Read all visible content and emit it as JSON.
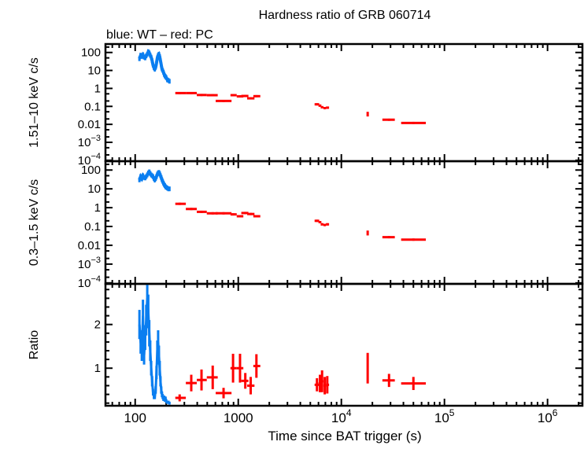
{
  "chart_data": {
    "type": "scatter",
    "title": "Hardness ratio of GRB 060714",
    "subtitle": "blue: WT – red: PC",
    "xlabel": "Time since BAT trigger (s)",
    "xscale": "log",
    "xlim": [
      51.5,
      2180000
    ],
    "x_ticks": [
      {
        "value": 100,
        "base": "100",
        "exp": ""
      },
      {
        "value": 1000,
        "base": "1000",
        "exp": ""
      },
      {
        "value": 10000,
        "base": "10",
        "exp": "4"
      },
      {
        "value": 100000,
        "base": "10",
        "exp": "5"
      },
      {
        "value": 1000000,
        "base": "10",
        "exp": "6"
      }
    ],
    "colors": {
      "WT": "#0a7ef0",
      "PC": "#ff0000"
    },
    "panels": [
      {
        "key": "hard",
        "ylabel": "1.51–10 keV c/s",
        "yscale": "log",
        "ylim": [
          8.9e-05,
          295
        ],
        "y_ticks": [
          {
            "value": 100,
            "base": "100",
            "exp": ""
          },
          {
            "value": 10,
            "base": "10",
            "exp": ""
          },
          {
            "value": 1,
            "base": "1",
            "exp": ""
          },
          {
            "value": 0.1,
            "base": "0.1",
            "exp": ""
          },
          {
            "value": 0.01,
            "base": "0.01",
            "exp": ""
          },
          {
            "value": 0.001,
            "base": "10",
            "exp": "−3"
          },
          {
            "value": 0.0001,
            "base": "10",
            "exp": "−4"
          }
        ]
      },
      {
        "key": "soft",
        "ylabel": "0.3–1.5 keV c/s",
        "yscale": "log",
        "ylim": [
          8.9e-05,
          295
        ],
        "y_ticks": [
          {
            "value": 100,
            "base": "100",
            "exp": ""
          },
          {
            "value": 10,
            "base": "10",
            "exp": ""
          },
          {
            "value": 1,
            "base": "1",
            "exp": ""
          },
          {
            "value": 0.1,
            "base": "0.1",
            "exp": ""
          },
          {
            "value": 0.01,
            "base": "0.01",
            "exp": ""
          },
          {
            "value": 0.001,
            "base": "10",
            "exp": "−3"
          },
          {
            "value": 0.0001,
            "base": "10",
            "exp": "−4"
          }
        ]
      },
      {
        "key": "ratio",
        "ylabel": "Ratio",
        "yscale": "linear",
        "ylim": [
          0.14,
          2.93
        ],
        "y_ticks": [
          {
            "value": 2,
            "base": "2",
            "exp": ""
          },
          {
            "value": 1,
            "base": "1",
            "exp": ""
          }
        ]
      }
    ],
    "series": [
      {
        "name": "WT",
        "t": [
          110,
          113,
          116,
          119,
          122,
          125,
          128,
          131,
          134,
          137,
          140,
          143,
          146,
          149,
          152,
          155,
          158,
          161,
          164,
          167,
          170,
          173,
          176,
          179,
          182,
          185,
          188,
          191,
          194,
          197,
          200,
          205,
          210,
          215
        ],
        "hard": [
          45,
          70,
          60,
          75,
          55,
          50,
          65,
          80,
          110,
          95,
          70,
          55,
          35,
          20,
          14,
          12,
          15,
          25,
          50,
          70,
          80,
          60,
          35,
          20,
          12,
          10,
          8,
          6,
          5,
          4.5,
          4,
          3,
          2.8,
          2.5
        ],
        "soft": [
          30,
          45,
          35,
          50,
          40,
          38,
          45,
          55,
          70,
          80,
          65,
          55,
          50,
          45,
          35,
          30,
          35,
          45,
          60,
          70,
          75,
          65,
          50,
          40,
          30,
          25,
          20,
          17,
          15,
          13,
          12,
          11,
          10,
          10
        ],
        "ratio": [
          2.0,
          1.6,
          1.4,
          2.2,
          1.3,
          1.7,
          2.1,
          2.6,
          2.3,
          1.8,
          1.4,
          1.0,
          0.7,
          0.45,
          0.35,
          0.35,
          0.5,
          0.9,
          1.4,
          1.6,
          1.3,
          1.0,
          0.7,
          0.5,
          0.4,
          0.35,
          0.3,
          0.32,
          0.28,
          0.3,
          0.25,
          0.22,
          0.22,
          0.2
        ]
      },
      {
        "name": "PC",
        "points": [
          {
            "t": 270,
            "tlo": 245,
            "thi": 310,
            "hard": 0.55,
            "soft": 1.6,
            "ratio": 0.32,
            "rerr": 0.08
          },
          {
            "t": 350,
            "tlo": 310,
            "thi": 396,
            "hard": 0.55,
            "soft": 0.85,
            "ratio": 0.66,
            "rerr": 0.19
          },
          {
            "t": 440,
            "tlo": 396,
            "thi": 495,
            "hard": 0.43,
            "soft": 0.6,
            "ratio": 0.73,
            "rerr": 0.24
          },
          {
            "t": 565,
            "tlo": 495,
            "thi": 632,
            "hard": 0.42,
            "soft": 0.5,
            "ratio": 0.79,
            "rerr": 0.27
          },
          {
            "t": 720,
            "tlo": 604,
            "thi": 860,
            "hard": 0.2,
            "soft": 0.5,
            "ratio": 0.43,
            "rerr": 0.12
          },
          {
            "t": 890,
            "tlo": 840,
            "thi": 966,
            "hard": 0.42,
            "soft": 0.44,
            "ratio": 1.0,
            "rerr": 0.33
          },
          {
            "t": 1040,
            "tlo": 966,
            "thi": 1120,
            "hard": 0.36,
            "soft": 0.35,
            "ratio": 1.0,
            "rerr": 0.33
          },
          {
            "t": 1170,
            "tlo": 1070,
            "thi": 1255,
            "hard": 0.38,
            "soft": 0.52,
            "ratio": 0.71,
            "rerr": 0.18
          },
          {
            "t": 1320,
            "tlo": 1220,
            "thi": 1436,
            "hard": 0.28,
            "soft": 0.46,
            "ratio": 0.6,
            "rerr": 0.2
          },
          {
            "t": 1500,
            "tlo": 1400,
            "thi": 1636,
            "hard": 0.37,
            "soft": 0.35,
            "ratio": 1.05,
            "rerr": 0.27
          },
          {
            "t": 5800,
            "tlo": 5500,
            "thi": 6100,
            "hard": 0.13,
            "soft": 0.2,
            "ratio": 0.62,
            "rerr": 0.15
          },
          {
            "t": 6200,
            "tlo": 6000,
            "thi": 6400,
            "hard": 0.11,
            "soft": 0.17,
            "ratio": 0.65,
            "rerr": 0.2
          },
          {
            "t": 6500,
            "tlo": 6300,
            "thi": 6700,
            "hard": 0.09,
            "soft": 0.13,
            "ratio": 0.7,
            "rerr": 0.25
          },
          {
            "t": 6900,
            "tlo": 6700,
            "thi": 7100,
            "hard": 0.08,
            "soft": 0.12,
            "ratio": 0.6,
            "rerr": 0.2
          },
          {
            "t": 7300,
            "tlo": 7100,
            "thi": 7600,
            "hard": 0.085,
            "soft": 0.13,
            "ratio": 0.62,
            "rerr": 0.2
          },
          {
            "t": 18000,
            "tlo": 17800,
            "thi": 18200,
            "hard": 0.037,
            "soft": 0.045,
            "ratio": 1.0,
            "rerr": 0.35
          },
          {
            "t": 29000,
            "tlo": 25000,
            "thi": 33000,
            "hard": 0.018,
            "soft": 0.027,
            "ratio": 0.72,
            "rerr": 0.15
          },
          {
            "t": 50000,
            "tlo": 38000,
            "thi": 66000,
            "hard": 0.012,
            "soft": 0.02,
            "ratio": 0.65,
            "rerr": 0.15
          }
        ]
      }
    ]
  }
}
